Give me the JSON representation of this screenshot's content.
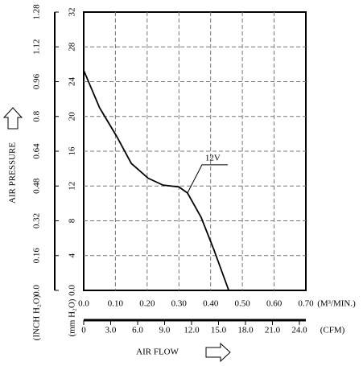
{
  "chart_data": {
    "type": "line",
    "x_label": "AIR FLOW",
    "x_unit": "(M³/MIN.)",
    "x2_unit": "(CFM)",
    "y_label": "AIR PRESSURE",
    "y_unit": "(mm H₂O)",
    "y2_unit": "(INCH H₂O)",
    "x": [
      0,
      0.05,
      0.104,
      0.15,
      0.203,
      0.25,
      0.3,
      0.327,
      0.37,
      0.41,
      0.457
    ],
    "series": [
      {
        "name": "12V",
        "color": "#000000",
        "values": [
          25.3,
          21,
          17.7,
          14.6,
          12.9,
          12.1,
          11.9,
          11.2,
          8.4,
          4.7,
          0
        ]
      }
    ],
    "xlim": [
      0,
      0.7
    ],
    "xticks": [
      {
        "value": 0,
        "label": "0.0"
      },
      {
        "value": 0.1,
        "label": "0.10"
      },
      {
        "value": 0.2,
        "label": "0.20"
      },
      {
        "value": 0.3,
        "label": "0.30"
      },
      {
        "value": 0.4,
        "label": "0.40"
      },
      {
        "value": 0.5,
        "label": "0.50"
      },
      {
        "value": 0.6,
        "label": "0.60"
      },
      {
        "value": 0.7,
        "label": "0.70"
      }
    ],
    "x2lim": [
      0,
      24.72
    ],
    "x2ticks": [
      0,
      {
        "value": 3,
        "label": "3.0"
      },
      {
        "value": 6,
        "label": "6.0"
      },
      {
        "value": 9,
        "label": "9.0"
      },
      {
        "value": 12,
        "label": "12.0"
      },
      {
        "value": 15,
        "label": "15.0"
      },
      {
        "value": 18,
        "label": "18.0"
      },
      {
        "value": 21,
        "label": "21.0"
      },
      {
        "value": 24,
        "label": "24.0"
      }
    ],
    "ylim": [
      0,
      32
    ],
    "yticks": [
      {
        "value": 0,
        "label": "0.0"
      },
      4,
      8,
      12,
      16,
      20,
      24,
      28,
      32
    ],
    "y2lim": [
      0,
      1.28
    ],
    "y2ticks": [
      {
        "value": 0,
        "label": "0.0"
      },
      0.16,
      0.32,
      0.48,
      0.64,
      0.8,
      0.96,
      1.12,
      1.28
    ],
    "grid": true
  }
}
